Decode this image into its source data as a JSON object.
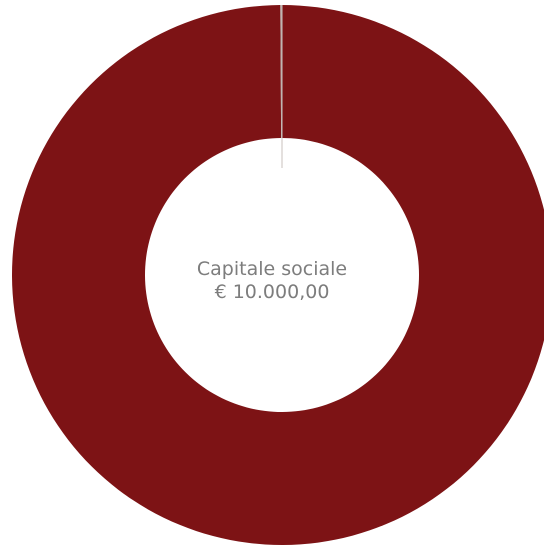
{
  "chart_data": {
    "type": "pie",
    "variant": "donut",
    "center_text": {
      "title": "Capitale sociale",
      "value": "€ 10.000,00"
    },
    "slices": [
      {
        "value": 99.9,
        "color": "#7d1315"
      },
      {
        "value": 0.1,
        "color": "#b9a9a5"
      }
    ],
    "start_angle": "top",
    "direction": "clockwise",
    "legend": "none",
    "background": "#ffffff"
  }
}
